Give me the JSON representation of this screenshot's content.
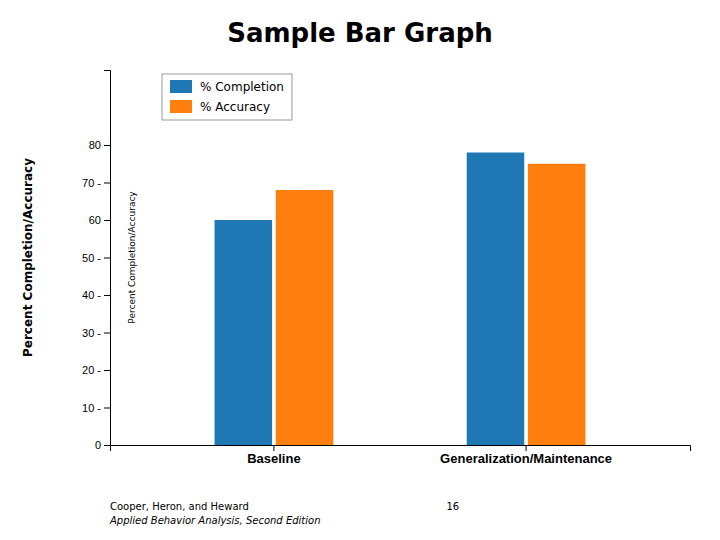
{
  "chart_data": {
    "type": "bar",
    "title": "Sample Bar Graph",
    "ylabel": "Percent Completion/Accuracy",
    "categories": [
      "Baseline",
      "Generalization/Maintenance"
    ],
    "series": [
      {
        "name": "% Completion",
        "values": [
          60,
          78
        ]
      },
      {
        "name": "% Accuracy",
        "values": [
          68,
          75
        ]
      }
    ],
    "ylim": [
      0,
      100
    ],
    "yticks": [
      0,
      {
        "value": 10,
        "label": "10 -"
      },
      {
        "value": 20,
        "label": "20 -"
      },
      {
        "value": 30,
        "label": "30 -"
      },
      {
        "value": 40,
        "label": "40 -"
      },
      {
        "value": 50,
        "label": "50 -"
      },
      60,
      {
        "value": 70,
        "label": "70 -"
      },
      80
    ],
    "annotations": [
      "Percent Completion/Accuracy",
      "Cooper, Heron, and Heward",
      "Applied Behavior Analysis, Second Edition",
      "16"
    ],
    "legend": "upper left",
    "grid": false
  }
}
